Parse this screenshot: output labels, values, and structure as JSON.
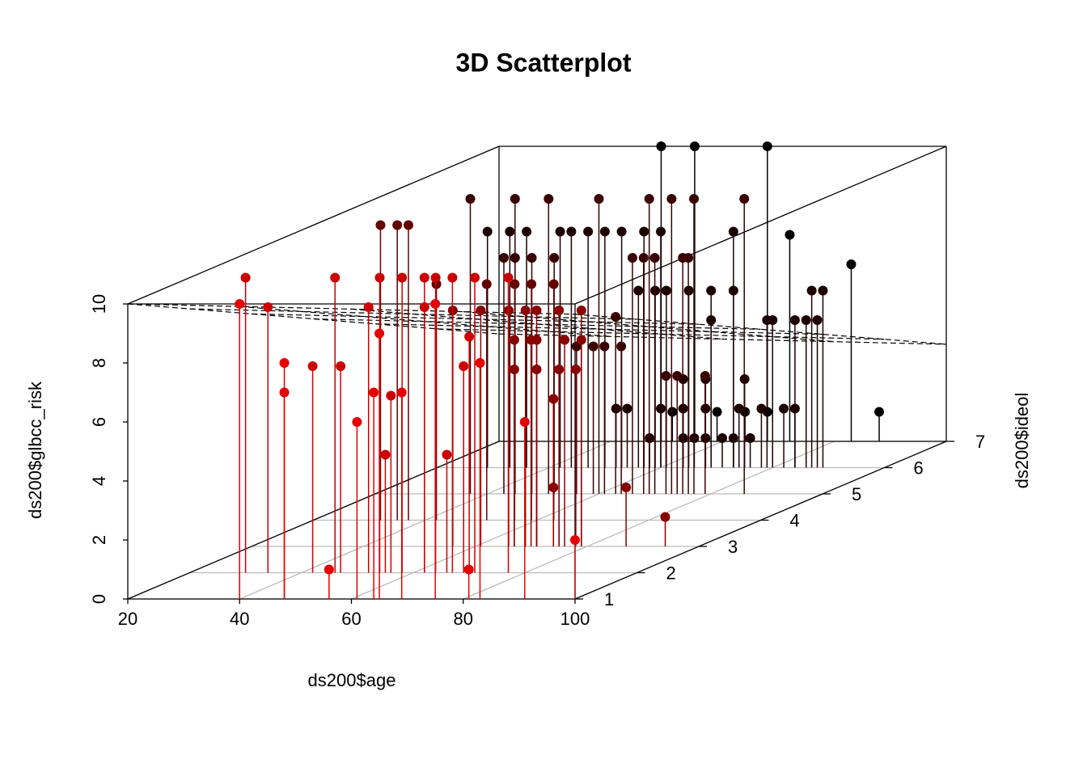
{
  "chart_data": {
    "type": "scatter3d",
    "title": "3D Scatterplot",
    "x_label": "ds200$age",
    "y_label": "ds200$ideol",
    "z_label": "ds200$glbcc_risk",
    "xlim": [
      20,
      100
    ],
    "ylim": [
      1,
      7
    ],
    "zlim": [
      0,
      10
    ],
    "xticks": [
      20,
      40,
      60,
      80,
      100
    ],
    "yticks": [
      1,
      2,
      3,
      4,
      5,
      6,
      7
    ],
    "zticks": [
      0,
      2,
      4,
      6,
      8,
      10
    ],
    "grid": true,
    "point_colors": [
      "#e60000",
      "#cc0000",
      "#8a0000",
      "#640000",
      "#3a0000",
      "#1c0000",
      "#000000"
    ],
    "plane": {
      "intercept": 11.15,
      "age_coef": -0.0044,
      "ideol_coef": -1.06
    },
    "x": [
      40,
      56,
      81,
      100,
      48,
      48,
      61,
      65,
      64,
      69,
      75,
      83,
      91,
      30,
      34,
      46,
      54,
      58,
      62,
      64,
      67,
      71,
      77,
      70,
      52,
      62,
      56,
      42,
      47,
      55,
      66,
      69,
      94,
      74,
      87,
      56,
      61,
      66,
      69,
      71,
      75,
      79,
      67,
      70,
      71,
      76,
      79,
      67,
      71,
      75,
      78,
      74,
      32,
      35,
      37,
      42,
      51,
      56,
      59,
      63,
      37,
      45,
      51,
      60,
      69,
      73,
      77,
      86,
      48,
      43,
      45,
      52,
      66,
      68,
      70,
      75,
      76,
      63,
      61,
      64,
      59,
      56,
      72,
      74,
      79,
      29,
      33,
      36,
      42,
      44,
      47,
      50,
      53,
      57,
      60,
      73,
      56,
      59,
      61,
      65,
      69,
      73,
      87,
      89,
      69,
      79,
      80,
      84,
      86,
      88,
      58,
      64,
      66,
      68,
      71,
      73,
      76,
      52,
      54,
      60,
      64,
      68,
      74,
      78,
      82,
      84,
      64,
      68,
      75,
      49,
      55,
      68,
      72,
      83,
      88,
      51,
      59,
      64,
      68
    ],
    "y": [
      1,
      1,
      1,
      1,
      1,
      1,
      1,
      1,
      1,
      1,
      1,
      1,
      1,
      2,
      2,
      2,
      2,
      2,
      2,
      2,
      2,
      2,
      2,
      2,
      2,
      2,
      2,
      2,
      2,
      2,
      2,
      2,
      3,
      3,
      3,
      3,
      3,
      3,
      3,
      3,
      3,
      3,
      3,
      3,
      3,
      3,
      3,
      3,
      3,
      3,
      3,
      3,
      4,
      4,
      4,
      4,
      4,
      4,
      4,
      4,
      5,
      5,
      5,
      5,
      5,
      5,
      5,
      5,
      5,
      5,
      5,
      5,
      5,
      5,
      5,
      5,
      5,
      5,
      5,
      5,
      5,
      5,
      5,
      5,
      5,
      6,
      6,
      6,
      6,
      6,
      6,
      6,
      6,
      6,
      6,
      6,
      6,
      6,
      6,
      6,
      6,
      6,
      6,
      6,
      6,
      6,
      6,
      6,
      6,
      6,
      6,
      6,
      6,
      6,
      6,
      6,
      6,
      6,
      6,
      6,
      6,
      6,
      6,
      6,
      6,
      6,
      6,
      6,
      6,
      7,
      7,
      7,
      7,
      7,
      7,
      7,
      7,
      7,
      7
    ],
    "z": [
      10,
      1,
      1,
      2,
      8,
      7,
      6,
      9,
      7,
      7,
      10,
      8,
      6,
      10,
      9,
      10,
      10,
      10,
      10,
      10,
      10,
      10,
      10,
      8,
      9,
      9,
      6,
      7,
      7,
      4,
      4,
      7,
      1,
      2,
      2,
      8,
      8,
      8,
      8,
      8,
      8,
      8,
      7,
      7,
      7,
      7,
      7,
      6,
      6,
      6,
      6,
      5,
      10,
      10,
      10,
      8,
      8,
      8,
      8,
      8,
      10,
      10,
      10,
      10,
      10,
      10,
      10,
      10,
      8,
      8,
      8,
      8,
      8,
      8,
      8,
      8,
      8,
      6,
      5,
      5,
      5,
      5,
      4,
      4,
      4,
      8,
      8,
      8,
      8,
      8,
      8,
      8,
      8,
      8,
      8,
      8,
      6,
      6,
      6,
      6,
      6,
      6,
      6,
      6,
      5,
      5,
      5,
      5,
      5,
      5,
      1,
      1,
      1,
      1,
      1,
      1,
      1,
      2,
      2,
      2,
      2,
      2,
      2,
      2,
      2,
      2,
      3,
      3,
      3,
      10,
      10,
      10,
      7,
      6,
      1,
      1,
      1,
      1,
      1
    ]
  }
}
